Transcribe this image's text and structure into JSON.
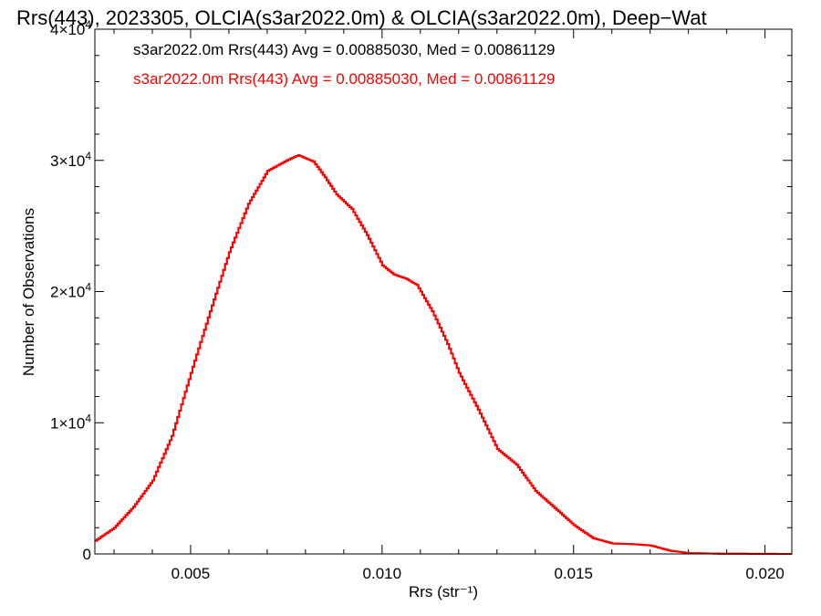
{
  "chart_data": {
    "type": "line",
    "title": "Rrs(443), 2023305, OLCIA(s3ar2022.0m) & OLCIA(s3ar2022.0m), Deep−Wat",
    "xlabel": "Rrs (str⁻¹)",
    "ylabel": "Number of Observations",
    "xlim": [
      0.0025,
      0.0207
    ],
    "ylim": [
      0,
      40000
    ],
    "x_ticks": [
      {
        "value": 0.005,
        "label": "0.005"
      },
      {
        "value": 0.01,
        "label": "0.010"
      },
      {
        "value": 0.015,
        "label": "0.015"
      },
      {
        "value": 0.02,
        "label": "0.020"
      }
    ],
    "y_ticks": [
      {
        "value": 0,
        "base": "0",
        "exp": ""
      },
      {
        "value": 10000,
        "base": "1×10",
        "exp": "4"
      },
      {
        "value": 20000,
        "base": "2×10",
        "exp": "4"
      },
      {
        "value": 30000,
        "base": "3×10",
        "exp": "4"
      },
      {
        "value": 40000,
        "base": "4×10",
        "exp": "4"
      }
    ],
    "annotations": [
      {
        "text": "s3ar2022.0m Rrs(443) Avg = 0.00885030, Med = 0.00861129",
        "color": "#000000"
      },
      {
        "text": "s3ar2022.0m Rrs(443) Avg = 0.00885030, Med = 0.00861129",
        "color": "#ff0000"
      }
    ],
    "series": [
      {
        "color": "#ff0000",
        "points": [
          [
            0.0025,
            1000
          ],
          [
            0.003,
            2000
          ],
          [
            0.0035,
            3600
          ],
          [
            0.004,
            5600
          ],
          [
            0.0045,
            9000
          ],
          [
            0.005,
            13800
          ],
          [
            0.0055,
            18500
          ],
          [
            0.006,
            23000
          ],
          [
            0.0065,
            26700
          ],
          [
            0.007,
            29200
          ],
          [
            0.0075,
            30000
          ],
          [
            0.0078,
            30400
          ],
          [
            0.0082,
            29900
          ],
          [
            0.0085,
            28700
          ],
          [
            0.0088,
            27400
          ],
          [
            0.0092,
            26300
          ],
          [
            0.0096,
            24300
          ],
          [
            0.01,
            22000
          ],
          [
            0.0103,
            21300
          ],
          [
            0.0106,
            21000
          ],
          [
            0.0109,
            20500
          ],
          [
            0.0113,
            18500
          ],
          [
            0.0117,
            16000
          ],
          [
            0.012,
            13800
          ],
          [
            0.0125,
            11000
          ],
          [
            0.013,
            8000
          ],
          [
            0.0135,
            6800
          ],
          [
            0.014,
            4800
          ],
          [
            0.0145,
            3500
          ],
          [
            0.015,
            2200
          ],
          [
            0.0155,
            1200
          ],
          [
            0.016,
            800
          ],
          [
            0.0165,
            750
          ],
          [
            0.017,
            650
          ],
          [
            0.0175,
            250
          ],
          [
            0.018,
            60
          ],
          [
            0.019,
            15
          ],
          [
            0.0207,
            0
          ]
        ]
      },
      {
        "color": "#ff0000",
        "points": [
          [
            0.0025,
            1000
          ],
          [
            0.003,
            2000
          ],
          [
            0.0035,
            3600
          ],
          [
            0.004,
            5600
          ],
          [
            0.0045,
            9000
          ],
          [
            0.005,
            13800
          ],
          [
            0.0055,
            18500
          ],
          [
            0.006,
            23000
          ],
          [
            0.0065,
            26700
          ],
          [
            0.007,
            29200
          ],
          [
            0.0075,
            30000
          ],
          [
            0.0078,
            30400
          ],
          [
            0.0082,
            29900
          ],
          [
            0.0085,
            28700
          ],
          [
            0.0088,
            27400
          ],
          [
            0.0092,
            26300
          ],
          [
            0.0096,
            24300
          ],
          [
            0.01,
            22000
          ],
          [
            0.0103,
            21300
          ],
          [
            0.0106,
            21000
          ],
          [
            0.0109,
            20500
          ],
          [
            0.0113,
            18500
          ],
          [
            0.0117,
            16000
          ],
          [
            0.012,
            13800
          ],
          [
            0.0125,
            11000
          ],
          [
            0.013,
            8000
          ],
          [
            0.0135,
            6800
          ],
          [
            0.014,
            4800
          ],
          [
            0.0145,
            3500
          ],
          [
            0.015,
            2200
          ],
          [
            0.0155,
            1200
          ],
          [
            0.016,
            800
          ],
          [
            0.0165,
            750
          ],
          [
            0.017,
            650
          ],
          [
            0.0175,
            250
          ],
          [
            0.018,
            60
          ],
          [
            0.019,
            15
          ],
          [
            0.0207,
            0
          ]
        ]
      }
    ]
  }
}
